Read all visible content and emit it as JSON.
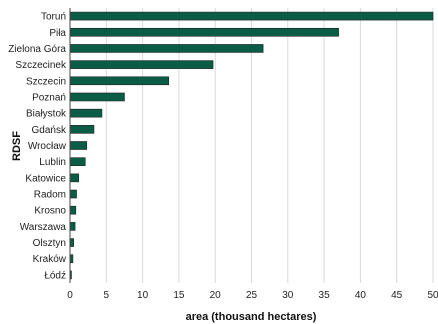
{
  "chart_data": {
    "type": "bar",
    "orientation": "horizontal",
    "categories": [
      "Toruń",
      "Piła",
      "Zielona Góra",
      "Szczecinek",
      "Szczecin",
      "Poznań",
      "Białystok",
      "Gdańsk",
      "Wrocław",
      "Lublin",
      "Katowice",
      "Radom",
      "Krosno",
      "Warszawa",
      "Olsztyn",
      "Kraków",
      "Łódź"
    ],
    "values": [
      50.0,
      37.0,
      26.6,
      19.7,
      13.6,
      7.5,
      4.4,
      3.3,
      2.3,
      2.1,
      1.2,
      0.9,
      0.8,
      0.7,
      0.5,
      0.4,
      0.2
    ],
    "xlabel": "area (thousand hectares)",
    "ylabel": "RDSF",
    "xlim": [
      0,
      50
    ],
    "xticks": [
      0,
      5,
      10,
      15,
      20,
      25,
      30,
      35,
      40,
      45,
      50
    ],
    "grid": "vertical",
    "bar_color": "#0b5c45",
    "grid_color": "#d9d9d9"
  }
}
